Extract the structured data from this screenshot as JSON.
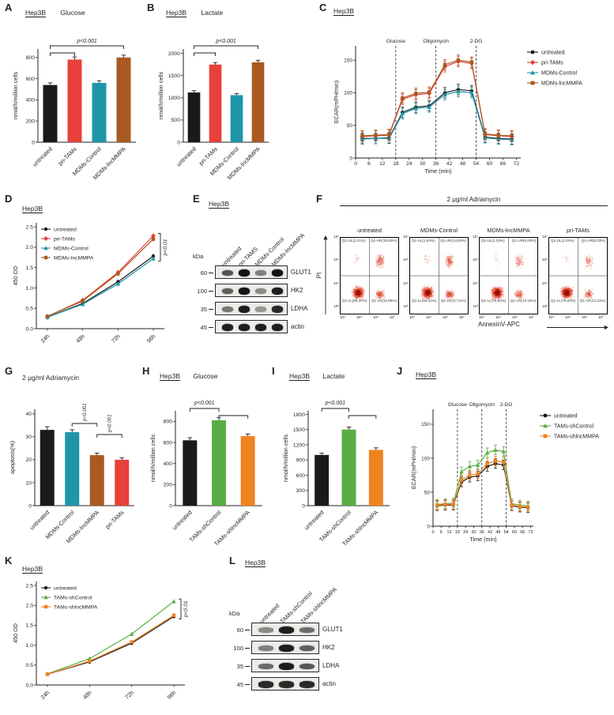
{
  "figure": {
    "background": "#ffffff"
  },
  "colors": {
    "untreated": "#1a1a1a",
    "pri_tams": "#e8403a",
    "mdms_control": "#1e96a8",
    "mdms_lncmmpa": "#a85a20",
    "tams_shcontrol": "#5aad45",
    "tams_shlncmmpa": "#f08220",
    "axis": "#231f20",
    "flow_dot": "#e0452c"
  },
  "chart_data": [
    {
      "id": "A",
      "panel_label": "A",
      "header": "Hep3B",
      "type": "bar",
      "title": "Glucose",
      "ylabel": "nmol/h/million cells",
      "categories": [
        "untreated",
        "pri-TAMs",
        "MDMs-Control",
        "MDMs-lncMMPA"
      ],
      "values": [
        540,
        780,
        560,
        800
      ],
      "errors": [
        20,
        25,
        20,
        22
      ],
      "bar_colors": [
        "#1a1a1a",
        "#e8403a",
        "#1e96a8",
        "#a85a20"
      ],
      "yticks": [
        0,
        200,
        400,
        600,
        800
      ],
      "ymax": 880,
      "sig": {
        "label": "p<0.001",
        "label_between": [
          0,
          3
        ],
        "label_y_off": -8,
        "brackets": [
          {
            "from": 0,
            "to": 1,
            "y_off": 5
          },
          {
            "from": 0,
            "to": 3,
            "y_off": -4
          }
        ]
      },
      "margins": {
        "l": 42,
        "r": 6,
        "t": 34,
        "b": 58
      }
    },
    {
      "id": "B",
      "panel_label": "B",
      "header": "Hep3B",
      "type": "bar",
      "title": "Lactate",
      "ylabel": "nmol/h/million cells",
      "categories": [
        "untreated",
        "pri-TAMs",
        "MDMs-Control",
        "MDMs-lncMMPA"
      ],
      "values": [
        1120,
        1750,
        1060,
        1800
      ],
      "errors": [
        40,
        45,
        35,
        45
      ],
      "bar_colors": [
        "#1a1a1a",
        "#e8403a",
        "#1e96a8",
        "#a85a20"
      ],
      "yticks": [
        0,
        500,
        1000,
        1500,
        2000
      ],
      "ymax": 2100,
      "sig": {
        "label": "p<0.001",
        "label_between": [
          0,
          3
        ],
        "label_y_off": -8,
        "brackets": [
          {
            "from": 0,
            "to": 1,
            "y_off": 5
          },
          {
            "from": 0,
            "to": 3,
            "y_off": -4
          }
        ]
      },
      "margins": {
        "l": 46,
        "r": 6,
        "t": 34,
        "b": 58
      }
    },
    {
      "id": "C",
      "panel_label": "C",
      "header": "Hep3B",
      "type": "line",
      "xlabel": "Time (min)",
      "ylabel": "ECAR(mPH/min)",
      "xticks": [
        0,
        6,
        12,
        18,
        24,
        30,
        36,
        42,
        48,
        54,
        60,
        66,
        72
      ],
      "yticks": [
        0,
        50,
        100,
        150
      ],
      "xmax": 74,
      "ymax": 172,
      "err": 8,
      "phases": [
        {
          "x": 18,
          "label": "Glucose"
        },
        {
          "x": 36,
          "label": "Oligomycin"
        },
        {
          "x": 54,
          "label": "2-DG"
        }
      ],
      "x": [
        3,
        9,
        15,
        21,
        27,
        33,
        40,
        46,
        52,
        58,
        64,
        70
      ],
      "series": [
        {
          "name": "untreated",
          "color": "#1a1a1a",
          "marker": "circle",
          "values": [
            30,
            30,
            31,
            70,
            78,
            80,
            100,
            105,
            103,
            32,
            30,
            29
          ]
        },
        {
          "name": "pri-TAMs",
          "color": "#e8403a",
          "marker": "diamond",
          "values": [
            33,
            34,
            35,
            90,
            97,
            99,
            140,
            148,
            145,
            36,
            34,
            33
          ]
        },
        {
          "name": "MDMs-Control",
          "color": "#1e96a8",
          "marker": "triangle",
          "values": [
            29,
            30,
            30,
            68,
            76,
            78,
            97,
            102,
            100,
            31,
            29,
            28
          ]
        },
        {
          "name": "MDMs-lncMMPA",
          "color": "#a85a20",
          "marker": "square",
          "values": [
            34,
            35,
            36,
            92,
            99,
            101,
            143,
            150,
            147,
            37,
            35,
            34
          ]
        }
      ],
      "margins": {
        "l": 54,
        "r": 116,
        "t": 36,
        "b": 36
      },
      "tick_fs": 6.5
    },
    {
      "id": "D",
      "panel_label": "D",
      "header": "Hep3B",
      "type": "growth",
      "ylabel": "450 OD",
      "categories": [
        "24h",
        "48h",
        "72h",
        "96h"
      ],
      "yticks": [
        "0.0",
        "0.5",
        "1.0",
        "1.5",
        "2.0",
        "2.5"
      ],
      "ymax": 2.6,
      "err": 0.06,
      "series": [
        {
          "name": "untreated",
          "color": "#1a1a1a",
          "marker": "circle",
          "values": [
            0.28,
            0.62,
            1.15,
            1.78
          ]
        },
        {
          "name": "pri-TAMs",
          "color": "#e8403a",
          "marker": "diamond",
          "values": [
            0.3,
            0.7,
            1.38,
            2.28
          ]
        },
        {
          "name": "MDMs-Control",
          "color": "#1e96a8",
          "marker": "triangle",
          "values": [
            0.28,
            0.6,
            1.1,
            1.72
          ]
        },
        {
          "name": "MDMs-lncMMPA",
          "color": "#a85a20",
          "marker": "square",
          "values": [
            0.3,
            0.68,
            1.35,
            2.2
          ]
        }
      ],
      "sig": {
        "label": "p<0.01"
      },
      "margins": {
        "l": 40,
        "r": 38,
        "t": 8,
        "b": 40
      }
    },
    {
      "id": "E",
      "panel_label": "E",
      "header": "Hep3B",
      "type": "blot",
      "kda_label": "kDa",
      "lanes": [
        "untreated",
        "pri-TAMS",
        "MDMs-Control",
        "MDMs-lncMMPA"
      ],
      "rows": [
        {
          "kda": "60",
          "protein": "GLUT1",
          "intensities": [
            0.7,
            1.0,
            0.5,
            1.0
          ]
        },
        {
          "kda": "100",
          "protein": "HK2",
          "intensities": [
            0.65,
            1.0,
            0.45,
            0.95
          ]
        },
        {
          "kda": "35",
          "protein": "LDHA",
          "intensities": [
            0.55,
            0.95,
            0.4,
            0.9
          ]
        },
        {
          "kda": "45",
          "protein": "actin",
          "intensities": [
            0.95,
            0.95,
            0.95,
            0.95
          ]
        }
      ],
      "lane_w": 21,
      "label_h": 64
    },
    {
      "id": "F",
      "panel_label": "F",
      "type": "flow",
      "treatment": "2 μg/ml Adriamycin",
      "xlabel": "AnnexinV-APC",
      "ylabel": "PI",
      "xticks": [
        "10³",
        "10⁴",
        "10⁵",
        "10⁷"
      ],
      "yticks": [
        "10⁷",
        "10⁵",
        "10⁴",
        "10³"
      ],
      "plots": [
        {
          "title": "untreated",
          "ul": "Q1-UL(1.21%)",
          "ur": "Q1-UR(15.60%)",
          "ll": "Q1-LL(66.30%)",
          "lr": "Q1-LR(16.89%)",
          "fr": {
            "ul": 0.012,
            "ur": 0.156,
            "ll": 0.663,
            "lr": 0.169
          }
        },
        {
          "title": "MDMs-Control",
          "ul": "Q1-UL(1.84%)",
          "ur": "Q1-UR(14.63%)",
          "ll": "Q1-LL(66.32%)",
          "lr": "Q1-LR(17.21%)",
          "fr": {
            "ul": 0.018,
            "ur": 0.146,
            "ll": 0.664,
            "lr": 0.172
          }
        },
        {
          "title": "MDMs-lncMMPA",
          "ul": "Q1-UL(1.03%)",
          "ur": "Q1-UR(9.00%)",
          "ll": "Q1-LL(76.82%)",
          "lr": "Q1-LR(13.15%)",
          "fr": {
            "ul": 0.01,
            "ur": 0.09,
            "ll": 0.768,
            "lr": 0.132
          }
        },
        {
          "title": "pri-TAMs",
          "ul": "Q1-UL(1.03%)",
          "ur": "Q1-UR(8.03%)",
          "ll": "Q1-LL(78.63%)",
          "lr": "Q1-LR(12.31%)",
          "fr": {
            "ul": 0.01,
            "ur": 0.08,
            "ll": 0.787,
            "lr": 0.123
          }
        }
      ]
    },
    {
      "id": "G",
      "panel_label": "G",
      "type": "bar",
      "title": "2 μg/ml Adriamycin",
      "ylabel": "apoptosis(%)",
      "categories": [
        "untreated",
        "MDMs-Control",
        "MDMs-lncMMPA",
        "pri-TAMs"
      ],
      "values": [
        33,
        32,
        22,
        20
      ],
      "errors": [
        1.4,
        1.1,
        0.9,
        0.8
      ],
      "bar_colors": [
        "#1a1a1a",
        "#1e96a8",
        "#a85a20",
        "#e8403a"
      ],
      "yticks": [
        0,
        10,
        20,
        30,
        40
      ],
      "ymax": 42,
      "sig": {
        "brackets": [
          {
            "from": 1,
            "to": 2,
            "y_off": 18,
            "label": "p<0.001",
            "vertical": true
          },
          {
            "from": 2,
            "to": 3,
            "y_off": 32,
            "label": "p<0.001",
            "vertical": true
          }
        ]
      },
      "margins": {
        "l": 38,
        "r": 8,
        "t": 30,
        "b": 62
      }
    },
    {
      "id": "H",
      "panel_label": "H",
      "header": "Hep3B",
      "type": "bar",
      "title": "Glucose",
      "ylabel": "nmol/h/million cells",
      "categories": [
        "untreated",
        "TAMs-shControl",
        "TAMs-shlncMMPA"
      ],
      "values": [
        620,
        810,
        660
      ],
      "errors": [
        25,
        25,
        20
      ],
      "bar_colors": [
        "#1a1a1a",
        "#5aad45",
        "#f08220"
      ],
      "yticks": [
        0,
        200,
        400,
        600,
        800
      ],
      "ymax": 900,
      "sig": {
        "label": "p<0.001",
        "label_between": [
          0,
          1
        ],
        "label_y_off": -8,
        "brackets": [
          {
            "from": 0,
            "to": 1,
            "y_off": -3
          },
          {
            "from": 1,
            "to": 2,
            "y_off": 6
          }
        ]
      },
      "margins": {
        "l": 42,
        "r": 8,
        "t": 34,
        "b": 62
      }
    },
    {
      "id": "I",
      "panel_label": "I",
      "header": "Hep3B",
      "type": "bar",
      "title": "Lactate",
      "ylabel": "nmol/h/million cells",
      "categories": [
        "untreated",
        "TAMs-shControl",
        "TAMs-shlncMMPA"
      ],
      "values": [
        1000,
        1500,
        1100
      ],
      "errors": [
        35,
        50,
        40
      ],
      "bar_colors": [
        "#1a1a1a",
        "#5aad45",
        "#f08220"
      ],
      "yticks": [
        0,
        300,
        600,
        900,
        1200,
        1500,
        1800
      ],
      "ymax": 1870,
      "sig": {
        "label": "p<0.001",
        "label_between": [
          0,
          1
        ],
        "label_y_off": -8,
        "brackets": [
          {
            "from": 0,
            "to": 1,
            "y_off": -3
          },
          {
            "from": 1,
            "to": 2,
            "y_off": 6
          }
        ]
      },
      "margins": {
        "l": 46,
        "r": 6,
        "t": 34,
        "b": 62
      }
    },
    {
      "id": "J",
      "panel_label": "J",
      "header": "Hep3B",
      "type": "line",
      "xlabel": "Time (min)",
      "ylabel": "ECAR(mPH/min)",
      "xticks": [
        0,
        6,
        12,
        18,
        24,
        30,
        36,
        42,
        48,
        54,
        60,
        66,
        72
      ],
      "yticks": [
        0,
        50,
        100,
        150
      ],
      "xmax": 74,
      "ymax": 172,
      "err": 7,
      "phases": [
        {
          "x": 18,
          "label": "Glucose"
        },
        {
          "x": 36,
          "label": "Oligomycin"
        },
        {
          "x": 54,
          "label": "2-DG"
        }
      ],
      "x": [
        3,
        9,
        15,
        21,
        27,
        33,
        40,
        46,
        52,
        58,
        64,
        70
      ],
      "series": [
        {
          "name": "untreated",
          "color": "#1a1a1a",
          "marker": "circle",
          "values": [
            30,
            31,
            31,
            65,
            72,
            74,
            88,
            92,
            90,
            30,
            28,
            27
          ]
        },
        {
          "name": "TAMs-shControl",
          "color": "#5aad45",
          "marker": "triangle",
          "values": [
            32,
            33,
            34,
            80,
            88,
            90,
            108,
            112,
            110,
            33,
            31,
            30
          ]
        },
        {
          "name": "TAMs-shlncMMPA",
          "color": "#f08220",
          "marker": "square",
          "values": [
            31,
            32,
            32,
            68,
            75,
            77,
            92,
            96,
            94,
            31,
            29,
            28
          ]
        }
      ],
      "margins": {
        "l": 46,
        "r": 100,
        "t": 36,
        "b": 36
      },
      "tick_fs": 5.5
    },
    {
      "id": "K",
      "panel_label": "K",
      "header": "Hep3B",
      "type": "growth",
      "ylabel": "450 OD",
      "categories": [
        "24h",
        "48h",
        "72h",
        "96h"
      ],
      "yticks": [
        "0.0",
        "0.5",
        "1.0",
        "1.5",
        "2.0",
        "2.5"
      ],
      "ymax": 2.6,
      "err": 0.05,
      "series": [
        {
          "name": "untreated",
          "color": "#1a1a1a",
          "marker": "circle",
          "values": [
            0.27,
            0.58,
            1.05,
            1.72
          ]
        },
        {
          "name": "TAMs-shControl",
          "color": "#5aad45",
          "marker": "triangle",
          "values": [
            0.28,
            0.66,
            1.28,
            2.1
          ]
        },
        {
          "name": "TAMs-shlncMMPA",
          "color": "#f08220",
          "marker": "square",
          "values": [
            0.27,
            0.6,
            1.08,
            1.75
          ]
        }
      ],
      "sig": {
        "label": "p<0.01"
      },
      "margins": {
        "l": 40,
        "r": 40,
        "t": 8,
        "b": 38
      }
    },
    {
      "id": "L",
      "panel_label": "L",
      "header": "Hep3B",
      "type": "blot",
      "kda_label": "kDa",
      "lanes": [
        "untreated",
        "TAMs-shControl",
        "TAMs-shlncMMPA"
      ],
      "rows": [
        {
          "kda": "60",
          "protein": "GLUT1",
          "intensities": [
            0.45,
            0.95,
            0.6
          ]
        },
        {
          "kda": "100",
          "protein": "HK2",
          "intensities": [
            0.5,
            0.95,
            0.65
          ]
        },
        {
          "kda": "35",
          "protein": "LDHA",
          "intensities": [
            0.6,
            0.95,
            0.7
          ]
        },
        {
          "kda": "45",
          "protein": "actin",
          "intensities": [
            0.9,
            0.9,
            0.9
          ]
        }
      ],
      "lane_w": 26,
      "label_h": 64
    }
  ]
}
